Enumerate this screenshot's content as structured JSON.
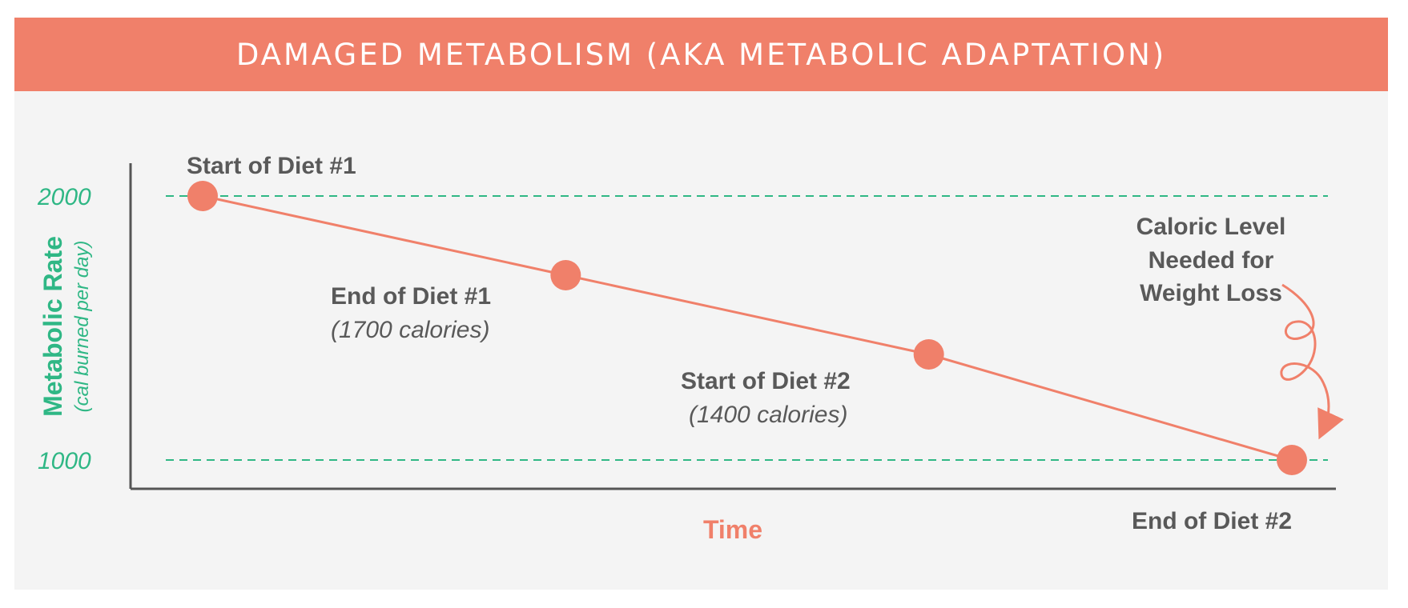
{
  "title": "DAMAGED METABOLISM (AKA METABOLIC ADAPTATION)",
  "colors": {
    "accent": "#f0806a",
    "green": "#2fb785",
    "text": "#595959",
    "panel": "#f4f4f4"
  },
  "chart_data": {
    "type": "line",
    "title": "DAMAGED METABOLISM (AKA METABOLIC ADAPTATION)",
    "xlabel": "Time",
    "ylabel": "Metabolic Rate",
    "ylabel_sub": "(cal burned per day)",
    "yticks": [
      2000,
      1000
    ],
    "ylim": [
      880,
      2150
    ],
    "xlim": [
      0,
      100
    ],
    "reference_lines": [
      2000,
      1000
    ],
    "series": [
      {
        "name": "Metabolic rate",
        "x": [
          10,
          40,
          70,
          100
        ],
        "y": [
          2000,
          1700,
          1400,
          1000
        ]
      }
    ],
    "annotations": [
      {
        "label": "Start of Diet #1",
        "sub": ""
      },
      {
        "label": "End of Diet #1",
        "sub": "(1700 calories)"
      },
      {
        "label": "Start of Diet #2",
        "sub": "(1400 calories)"
      },
      {
        "label": "End of Diet #2",
        "sub": ""
      }
    ],
    "callout": [
      "Caloric Level",
      "Needed for",
      "Weight Loss"
    ]
  }
}
